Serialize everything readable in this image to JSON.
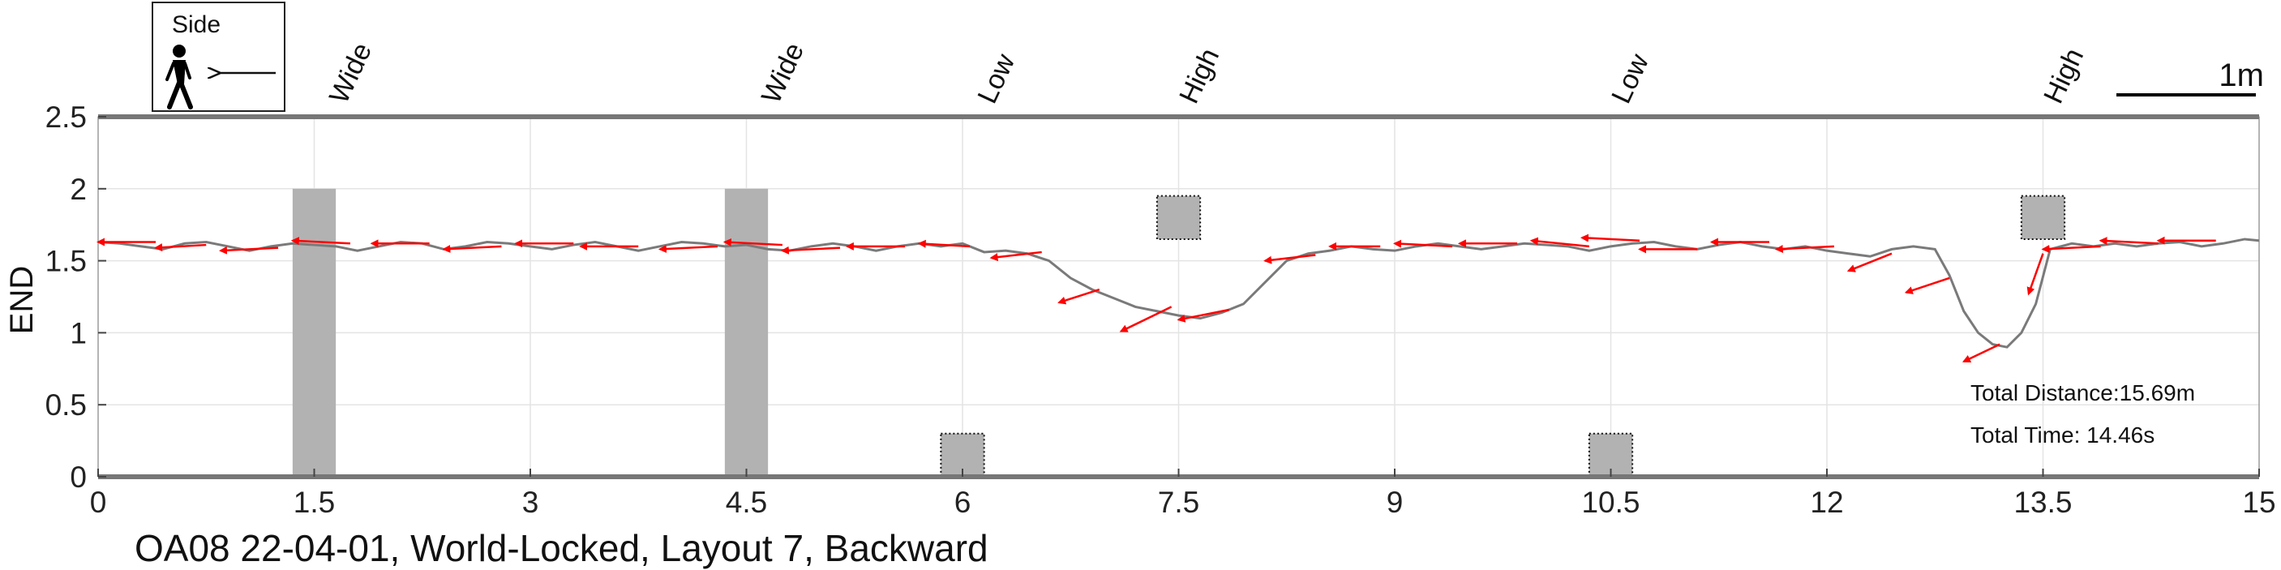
{
  "chart_data": {
    "type": "line",
    "title": "OA08 22-04-01, World-Locked, Layout 7, Backward",
    "ylabel": "END",
    "xlabel": "",
    "xlim": [
      0,
      15
    ],
    "ylim": [
      0,
      2.5
    ],
    "x_ticks": [
      "0",
      "1.5",
      "3",
      "4.5",
      "6",
      "7.5",
      "9",
      "10.5",
      "12",
      "13.5",
      "15"
    ],
    "y_ticks": [
      "0",
      "0.5",
      "1",
      "1.5",
      "2",
      "2.5"
    ],
    "grid": true,
    "legend": {
      "label": "Side",
      "position": "top-left"
    },
    "scale_bar_label": "1m",
    "obstacles": [
      {
        "label": "Wide",
        "x0": 1.35,
        "x1": 1.65,
        "y0": 0,
        "y1": 2.0,
        "style": "solid"
      },
      {
        "label": "Wide",
        "x0": 4.35,
        "x1": 4.65,
        "y0": 0,
        "y1": 2.0,
        "style": "solid"
      },
      {
        "label": "Low",
        "x0": 5.85,
        "x1": 6.15,
        "y0": 0,
        "y1": 0.3,
        "style": "dotted"
      },
      {
        "label": "High",
        "x0": 7.35,
        "x1": 7.65,
        "y0": 1.65,
        "y1": 1.95,
        "style": "dotted"
      },
      {
        "label": "Low",
        "x0": 10.35,
        "x1": 10.65,
        "y0": 0,
        "y1": 0.3,
        "style": "dotted"
      },
      {
        "label": "High",
        "x0": 13.35,
        "x1": 13.65,
        "y0": 1.65,
        "y1": 1.95,
        "style": "dotted"
      }
    ],
    "obstacle_label_x": [
      1.65,
      4.65,
      6.15,
      7.55,
      10.55,
      13.55
    ],
    "trajectory": {
      "x": [
        0,
        0.15,
        0.3,
        0.45,
        0.6,
        0.75,
        0.9,
        1.05,
        1.2,
        1.35,
        1.5,
        1.65,
        1.8,
        1.95,
        2.1,
        2.25,
        2.4,
        2.55,
        2.7,
        2.85,
        3.0,
        3.15,
        3.3,
        3.45,
        3.6,
        3.75,
        3.9,
        4.05,
        4.2,
        4.35,
        4.5,
        4.65,
        4.8,
        4.95,
        5.1,
        5.25,
        5.4,
        5.55,
        5.7,
        5.85,
        6.0,
        6.15,
        6.3,
        6.45,
        6.6,
        6.75,
        6.9,
        7.05,
        7.2,
        7.35,
        7.5,
        7.65,
        7.8,
        7.95,
        8.1,
        8.25,
        8.4,
        8.55,
        8.7,
        8.85,
        9.0,
        9.15,
        9.3,
        9.45,
        9.6,
        9.75,
        9.9,
        10.05,
        10.2,
        10.35,
        10.5,
        10.65,
        10.8,
        10.95,
        11.1,
        11.25,
        11.4,
        11.55,
        11.7,
        11.85,
        12.0,
        12.15,
        12.3,
        12.45,
        12.6,
        12.75,
        12.85,
        12.95,
        13.05,
        13.15,
        13.25,
        13.35,
        13.45,
        13.55,
        13.7,
        13.85,
        14.0,
        14.15,
        14.3,
        14.45,
        14.6,
        14.75,
        14.9,
        15.0
      ],
      "y": [
        1.63,
        1.62,
        1.6,
        1.58,
        1.62,
        1.63,
        1.6,
        1.57,
        1.6,
        1.62,
        1.61,
        1.6,
        1.57,
        1.6,
        1.63,
        1.62,
        1.58,
        1.6,
        1.63,
        1.62,
        1.6,
        1.58,
        1.61,
        1.63,
        1.6,
        1.57,
        1.6,
        1.63,
        1.62,
        1.6,
        1.61,
        1.58,
        1.57,
        1.6,
        1.62,
        1.6,
        1.57,
        1.6,
        1.62,
        1.6,
        1.62,
        1.56,
        1.57,
        1.55,
        1.5,
        1.38,
        1.3,
        1.24,
        1.18,
        1.15,
        1.12,
        1.1,
        1.14,
        1.2,
        1.35,
        1.5,
        1.55,
        1.57,
        1.6,
        1.58,
        1.57,
        1.6,
        1.62,
        1.6,
        1.58,
        1.6,
        1.62,
        1.61,
        1.6,
        1.57,
        1.6,
        1.62,
        1.63,
        1.6,
        1.58,
        1.61,
        1.63,
        1.6,
        1.58,
        1.6,
        1.57,
        1.55,
        1.53,
        1.58,
        1.6,
        1.58,
        1.4,
        1.15,
        1.0,
        0.92,
        0.9,
        1.0,
        1.2,
        1.58,
        1.62,
        1.6,
        1.62,
        1.6,
        1.62,
        1.63,
        1.6,
        1.62,
        1.65,
        1.64
      ]
    },
    "heading_arrows": [
      {
        "x": 0.4,
        "y": 1.63,
        "dx": -0.4,
        "dy": 0.0
      },
      {
        "x": 0.75,
        "y": 1.61,
        "dx": -0.35,
        "dy": -0.02
      },
      {
        "x": 1.25,
        "y": 1.59,
        "dx": -0.4,
        "dy": -0.02
      },
      {
        "x": 1.75,
        "y": 1.62,
        "dx": -0.4,
        "dy": 0.02
      },
      {
        "x": 2.3,
        "y": 1.62,
        "dx": -0.4,
        "dy": 0.0
      },
      {
        "x": 2.8,
        "y": 1.6,
        "dx": -0.4,
        "dy": -0.02
      },
      {
        "x": 3.3,
        "y": 1.62,
        "dx": -0.4,
        "dy": 0.0
      },
      {
        "x": 3.75,
        "y": 1.6,
        "dx": -0.4,
        "dy": 0.0
      },
      {
        "x": 4.3,
        "y": 1.6,
        "dx": -0.4,
        "dy": -0.02
      },
      {
        "x": 4.75,
        "y": 1.61,
        "dx": -0.4,
        "dy": 0.02
      },
      {
        "x": 5.15,
        "y": 1.59,
        "dx": -0.4,
        "dy": -0.02
      },
      {
        "x": 5.6,
        "y": 1.6,
        "dx": -0.4,
        "dy": 0.0
      },
      {
        "x": 6.05,
        "y": 1.6,
        "dx": -0.35,
        "dy": 0.02
      },
      {
        "x": 6.55,
        "y": 1.56,
        "dx": -0.35,
        "dy": -0.04
      },
      {
        "x": 6.95,
        "y": 1.3,
        "dx": -0.28,
        "dy": -0.09
      },
      {
        "x": 7.45,
        "y": 1.18,
        "dx": -0.35,
        "dy": -0.17
      },
      {
        "x": 7.85,
        "y": 1.16,
        "dx": -0.35,
        "dy": -0.07
      },
      {
        "x": 8.45,
        "y": 1.54,
        "dx": -0.35,
        "dy": -0.04
      },
      {
        "x": 8.9,
        "y": 1.6,
        "dx": -0.35,
        "dy": 0.0
      },
      {
        "x": 9.4,
        "y": 1.6,
        "dx": -0.4,
        "dy": 0.02
      },
      {
        "x": 9.85,
        "y": 1.62,
        "dx": -0.4,
        "dy": 0.0
      },
      {
        "x": 10.35,
        "y": 1.6,
        "dx": -0.4,
        "dy": 0.04
      },
      {
        "x": 10.7,
        "y": 1.64,
        "dx": -0.4,
        "dy": 0.02
      },
      {
        "x": 11.1,
        "y": 1.58,
        "dx": -0.4,
        "dy": 0.0
      },
      {
        "x": 11.6,
        "y": 1.63,
        "dx": -0.4,
        "dy": 0.0
      },
      {
        "x": 12.05,
        "y": 1.6,
        "dx": -0.4,
        "dy": -0.02
      },
      {
        "x": 12.45,
        "y": 1.55,
        "dx": -0.3,
        "dy": -0.12
      },
      {
        "x": 12.85,
        "y": 1.38,
        "dx": -0.3,
        "dy": -0.1
      },
      {
        "x": 13.2,
        "y": 0.92,
        "dx": -0.25,
        "dy": -0.12
      },
      {
        "x": 13.5,
        "y": 1.55,
        "dx": -0.1,
        "dy": -0.28
      },
      {
        "x": 13.9,
        "y": 1.6,
        "dx": -0.4,
        "dy": -0.02
      },
      {
        "x": 14.3,
        "y": 1.62,
        "dx": -0.4,
        "dy": 0.02
      },
      {
        "x": 14.7,
        "y": 1.64,
        "dx": -0.4,
        "dy": 0.0
      }
    ],
    "annotations": [
      "Total Distance:15.69m",
      "Total Time: 14.46s"
    ],
    "colors": {
      "trajectory": "#7a7a7a",
      "heading_arrow": "#ff0000",
      "obstacle_fill": "#b2b2b2",
      "axis": "#777777",
      "grid": "#e4e4e4"
    }
  }
}
